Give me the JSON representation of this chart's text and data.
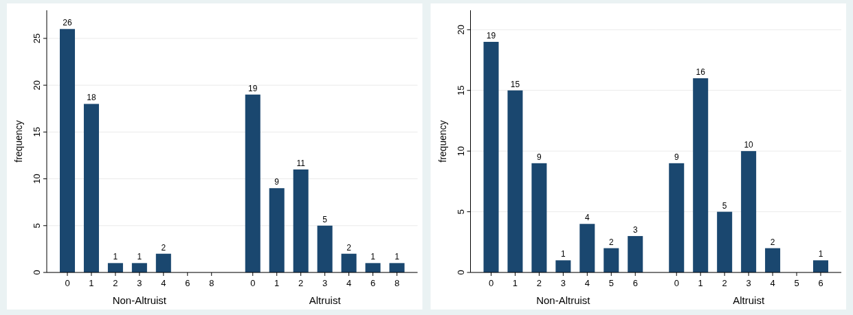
{
  "chart_data": [
    {
      "type": "bar",
      "ylabel": "frequency",
      "xlabel": "Non-Altruist",
      "categories": [
        "0",
        "1",
        "2",
        "3",
        "4",
        "6",
        "8"
      ],
      "values": [
        26,
        18,
        1,
        1,
        2,
        null,
        null
      ],
      "color": "#1a476f",
      "ylim": [
        0,
        28
      ],
      "yticks": [
        0,
        5,
        10,
        15,
        20,
        25
      ],
      "grid": "y",
      "data_labels": true
    },
    {
      "type": "bar",
      "xlabel": "Altruist",
      "categories": [
        "0",
        "1",
        "2",
        "3",
        "4",
        "6",
        "8"
      ],
      "values": [
        19,
        9,
        11,
        5,
        2,
        1,
        1
      ],
      "color": "#1a476f",
      "yticks": [
        0,
        5,
        10,
        15,
        20,
        25
      ],
      "grid": "y",
      "data_labels": true,
      "tick_labels": "x"
    },
    {
      "type": "bar",
      "ylabel": "frequency",
      "xlabel": "Non-Altruist",
      "categories": [
        "0",
        "1",
        "2",
        "3",
        "4",
        "5",
        "6"
      ],
      "values": [
        19,
        15,
        9,
        1,
        4,
        2,
        3
      ],
      "color": "#1a476f",
      "ylim": [
        0,
        21.6
      ],
      "yticks": [
        0,
        5,
        10,
        15,
        20
      ],
      "grid": "y",
      "data_labels": true
    },
    {
      "type": "bar",
      "xlabel": "Altruist",
      "categories": [
        "0",
        "1",
        "2",
        "3",
        "4",
        "5",
        "6"
      ],
      "values": [
        9,
        16,
        5,
        10,
        2,
        null,
        1
      ],
      "color": "#1a476f",
      "yticks": [
        0,
        5,
        10,
        15,
        20
      ],
      "grid": "y",
      "data_labels": true,
      "tick_labels": "x"
    }
  ]
}
